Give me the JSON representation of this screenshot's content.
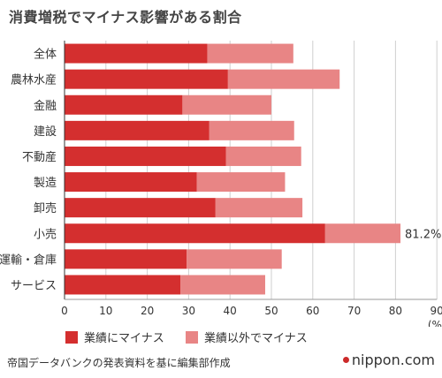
{
  "title": "消費増税でマイナス影響がある割合",
  "chart_data": {
    "type": "bar",
    "stacked": true,
    "orientation": "horizontal",
    "categories": [
      "全体",
      "農林水産",
      "金融",
      "建設",
      "不動産",
      "製造",
      "卸売",
      "小売",
      "運輸・倉庫",
      "サービス"
    ],
    "series": [
      {
        "name": "業績にマイナス",
        "color": "#d42f2f",
        "values": [
          34.5,
          39.5,
          28.5,
          35.0,
          39.0,
          32.0,
          36.5,
          63.0,
          29.5,
          28.0
        ]
      },
      {
        "name": "業績以外でマイナス",
        "color": "#e88585",
        "values": [
          20.8,
          27.0,
          21.5,
          20.5,
          18.2,
          21.3,
          21.0,
          18.2,
          23.0,
          20.5
        ]
      }
    ],
    "xlim": [
      0,
      90
    ],
    "xticks": [
      "0",
      "10",
      "20",
      "30",
      "40",
      "50",
      "60",
      "70",
      "80",
      "90"
    ],
    "xunit": "(%)",
    "annotations": [
      {
        "category": "小売",
        "text": "81.2%"
      }
    ],
    "grid": true,
    "legend_position": "bottom"
  },
  "source": "帝国データバンクの発表資料を基に編集部作成",
  "brand": "nippon.com"
}
